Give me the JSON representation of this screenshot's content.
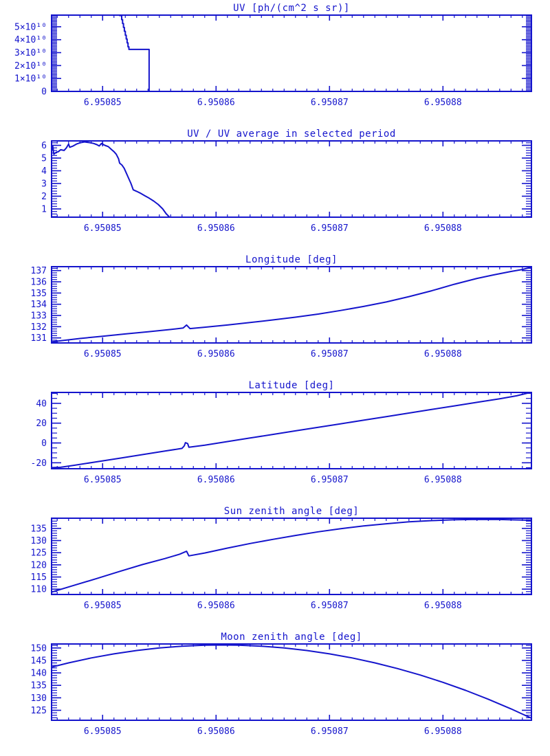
{
  "style": {
    "line_color": "#1414cc",
    "background": "#ffffff"
  },
  "chart_data": [
    {
      "type": "line",
      "title": "UV [ph/(cm^2 s sr)]",
      "x_range": [
        6.9508455,
        6.9508878
      ],
      "x_major_ticks": [
        6.95085,
        6.95086,
        6.95087,
        6.95088
      ],
      "x_tick_labels": [
        "6.95085",
        "6.95086",
        "6.95087",
        "6.95088"
      ],
      "x_minor_step": 1e-06,
      "y_range": [
        0,
        59000000000.0
      ],
      "y_major_ticks": [
        0,
        10000000000.0,
        20000000000.0,
        30000000000.0,
        40000000000.0,
        50000000000.0
      ],
      "y_tick_labels": [
        "0",
        "1×10¹⁰",
        "2×10¹⁰",
        "3×10¹⁰",
        "4×10¹⁰",
        "5×10¹⁰"
      ],
      "y_minor_step": 1000000000.0,
      "points": [
        [
          6.9508455,
          80000000000.0
        ],
        [
          6.9508512,
          80000000000.0
        ],
        [
          6.9508515,
          58700000000.0
        ],
        [
          6.95085168,
          58700000000.0
        ],
        [
          6.95085168,
          55500000000.0
        ],
        [
          6.95085176,
          55500000000.0
        ],
        [
          6.95085176,
          52500000000.0
        ],
        [
          6.95085184,
          52500000000.0
        ],
        [
          6.95085184,
          49500000000.0
        ],
        [
          6.95085192,
          49500000000.0
        ],
        [
          6.95085192,
          46500000000.0
        ],
        [
          6.950852,
          46500000000.0
        ],
        [
          6.950852,
          43500000000.0
        ],
        [
          6.95085208,
          43500000000.0
        ],
        [
          6.95085208,
          40500000000.0
        ],
        [
          6.95085216,
          40500000000.0
        ],
        [
          6.95085216,
          37500000000.0
        ],
        [
          6.95085224,
          37500000000.0
        ],
        [
          6.95085224,
          34500000000.0
        ],
        [
          6.95085232,
          34500000000.0
        ],
        [
          6.95085232,
          32500000000.0
        ],
        [
          6.9508541,
          32500000000.0
        ],
        [
          6.9508541,
          0
        ],
        [
          6.9508878,
          0
        ]
      ]
    },
    {
      "type": "line",
      "title": "UV / UV average in selected period",
      "x_range": [
        6.9508455,
        6.9508878
      ],
      "x_major_ticks": [
        6.95085,
        6.95086,
        6.95087,
        6.95088
      ],
      "x_tick_labels": [
        "6.95085",
        "6.95086",
        "6.95087",
        "6.95088"
      ],
      "x_minor_step": 1e-06,
      "y_range": [
        0.35,
        6.35
      ],
      "y_major_ticks": [
        1,
        2,
        3,
        4,
        5,
        6
      ],
      "y_tick_labels": [
        "1",
        "2",
        "3",
        "4",
        "5",
        "6"
      ],
      "y_minor_step": 0.2,
      "points": [
        [
          6.9508455,
          5.6
        ],
        [
          6.9508456,
          5.95
        ],
        [
          6.9508457,
          5.3
        ],
        [
          6.9508459,
          5.45
        ],
        [
          6.9508461,
          5.5
        ],
        [
          6.9508463,
          5.65
        ],
        [
          6.9508466,
          5.6
        ],
        [
          6.9508468,
          5.8
        ],
        [
          6.950847,
          6.1
        ],
        [
          6.9508471,
          5.85
        ],
        [
          6.9508474,
          5.95
        ],
        [
          6.9508477,
          6.1
        ],
        [
          6.950848,
          6.2
        ],
        [
          6.9508484,
          6.27
        ],
        [
          6.9508488,
          6.22
        ],
        [
          6.9508492,
          6.15
        ],
        [
          6.9508495,
          6.05
        ],
        [
          6.9508497,
          5.95
        ],
        [
          6.9508499,
          6.15
        ],
        [
          6.9508502,
          6.0
        ],
        [
          6.9508505,
          5.9
        ],
        [
          6.9508508,
          5.65
        ],
        [
          6.950851,
          5.5
        ],
        [
          6.9508512,
          5.3
        ],
        [
          6.9508514,
          4.95
        ],
        [
          6.9508515,
          4.6
        ],
        [
          6.9508517,
          4.45
        ],
        [
          6.9508519,
          4.2
        ],
        [
          6.9508521,
          3.8
        ],
        [
          6.9508523,
          3.4
        ],
        [
          6.9508525,
          3.0
        ],
        [
          6.9508527,
          2.5
        ],
        [
          6.950853,
          2.38
        ],
        [
          6.9508533,
          2.25
        ],
        [
          6.9508537,
          2.05
        ],
        [
          6.9508541,
          1.85
        ],
        [
          6.9508545,
          1.62
        ],
        [
          6.9508549,
          1.35
        ],
        [
          6.9508553,
          1.0
        ],
        [
          6.9508556,
          0.62
        ],
        [
          6.9508559,
          0.35
        ],
        [
          6.9508878,
          0.35
        ]
      ]
    },
    {
      "type": "line",
      "title": "Longitude [deg]",
      "x_range": [
        6.9508455,
        6.9508878
      ],
      "x_major_ticks": [
        6.95085,
        6.95086,
        6.95087,
        6.95088
      ],
      "x_tick_labels": [
        "6.95085",
        "6.95086",
        "6.95087",
        "6.95088"
      ],
      "x_minor_step": 1e-06,
      "y_range": [
        130.55,
        137.35
      ],
      "y_major_ticks": [
        131,
        132,
        133,
        134,
        135,
        136,
        137
      ],
      "y_tick_labels": [
        "131",
        "132",
        "133",
        "134",
        "135",
        "136",
        "137"
      ],
      "y_minor_step": 0.2,
      "points": [
        [
          6.9508455,
          130.65
        ],
        [
          6.950848,
          130.95
        ],
        [
          6.95085,
          131.15
        ],
        [
          6.950852,
          131.35
        ],
        [
          6.950854,
          131.55
        ],
        [
          6.950856,
          131.75
        ],
        [
          6.9508571,
          131.88
        ],
        [
          6.9508574,
          132.15
        ],
        [
          6.9508577,
          131.83
        ],
        [
          6.950859,
          131.95
        ],
        [
          6.950861,
          132.15
        ],
        [
          6.950863,
          132.37
        ],
        [
          6.950865,
          132.6
        ],
        [
          6.950867,
          132.85
        ],
        [
          6.950869,
          133.12
        ],
        [
          6.950871,
          133.45
        ],
        [
          6.950873,
          133.8
        ],
        [
          6.950875,
          134.2
        ],
        [
          6.950877,
          134.68
        ],
        [
          6.950879,
          135.2
        ],
        [
          6.950881,
          135.78
        ],
        [
          6.950883,
          136.3
        ],
        [
          6.9508845,
          136.62
        ],
        [
          6.950886,
          136.92
        ],
        [
          6.950887,
          137.1
        ],
        [
          6.9508878,
          137.3
        ]
      ]
    },
    {
      "type": "line",
      "title": "Latitude [deg]",
      "x_range": [
        6.9508455,
        6.9508878
      ],
      "x_major_ticks": [
        6.95085,
        6.95086,
        6.95087,
        6.95088
      ],
      "x_tick_labels": [
        "6.95085",
        "6.95086",
        "6.95087",
        "6.95088"
      ],
      "x_minor_step": 1e-06,
      "y_range": [
        -26,
        51
      ],
      "y_major_ticks": [
        -20,
        0,
        20,
        40
      ],
      "y_tick_labels": [
        "-20",
        "0",
        "20",
        "40"
      ],
      "y_minor_step": 5,
      "points": [
        [
          6.9508455,
          -24.9
        ],
        [
          6.9508463,
          -24.55
        ],
        [
          6.9508475,
          -22.5
        ],
        [
          6.9508495,
          -19.0
        ],
        [
          6.9508515,
          -15.4
        ],
        [
          6.9508535,
          -11.8
        ],
        [
          6.9508555,
          -8.2
        ],
        [
          6.950857,
          -5.5
        ],
        [
          6.9508572,
          -2.8
        ],
        [
          6.9508573,
          0.3
        ],
        [
          6.9508575,
          -0.6
        ],
        [
          6.9508576,
          -4.3
        ],
        [
          6.950859,
          -2.2
        ],
        [
          6.950861,
          1.4
        ],
        [
          6.950863,
          5.0
        ],
        [
          6.950865,
          8.6
        ],
        [
          6.950867,
          12.2
        ],
        [
          6.950869,
          15.8
        ],
        [
          6.950871,
          19.4
        ],
        [
          6.950873,
          23.0
        ],
        [
          6.950875,
          26.6
        ],
        [
          6.950877,
          30.2
        ],
        [
          6.950879,
          33.8
        ],
        [
          6.950881,
          37.4
        ],
        [
          6.950883,
          41.0
        ],
        [
          6.950885,
          44.6
        ],
        [
          6.9508865,
          47.6
        ],
        [
          6.9508878,
          51.3
        ]
      ]
    },
    {
      "type": "line",
      "title": "Sun zenith angle [deg]",
      "x_range": [
        6.9508455,
        6.9508878
      ],
      "x_major_ticks": [
        6.95085,
        6.95086,
        6.95087,
        6.95088
      ],
      "x_tick_labels": [
        "6.95085",
        "6.95086",
        "6.95087",
        "6.95088"
      ],
      "x_minor_step": 1e-06,
      "y_range": [
        107.8,
        139.2
      ],
      "y_major_ticks": [
        110,
        115,
        120,
        125,
        130,
        135
      ],
      "y_tick_labels": [
        "110",
        "115",
        "120",
        "125",
        "130",
        "135"
      ],
      "y_minor_step": 1,
      "points": [
        [
          6.9508455,
          108.8
        ],
        [
          6.9508475,
          111.6
        ],
        [
          6.9508495,
          114.4
        ],
        [
          6.9508515,
          117.3
        ],
        [
          6.9508535,
          120.1
        ],
        [
          6.9508555,
          122.6
        ],
        [
          6.9508568,
          124.4
        ],
        [
          6.9508571,
          125.0
        ],
        [
          6.9508574,
          125.6
        ],
        [
          6.9508576,
          123.7
        ],
        [
          6.950859,
          124.9
        ],
        [
          6.950861,
          126.9
        ],
        [
          6.950863,
          128.8
        ],
        [
          6.950865,
          130.5
        ],
        [
          6.950867,
          132.1
        ],
        [
          6.950869,
          133.6
        ],
        [
          6.950871,
          134.9
        ],
        [
          6.950873,
          136.0
        ],
        [
          6.950875,
          136.9
        ],
        [
          6.950877,
          137.7
        ],
        [
          6.950879,
          138.2
        ],
        [
          6.950881,
          138.55
        ],
        [
          6.950883,
          138.72
        ],
        [
          6.950885,
          138.65
        ],
        [
          6.9508865,
          138.5
        ],
        [
          6.9508878,
          138.35
        ]
      ]
    },
    {
      "type": "line",
      "title": "Moon zenith angle [deg]",
      "x_range": [
        6.9508455,
        6.9508878
      ],
      "x_major_ticks": [
        6.95085,
        6.95086,
        6.95087,
        6.95088
      ],
      "x_tick_labels": [
        "6.95085",
        "6.95086",
        "6.95087",
        "6.95088"
      ],
      "x_minor_step": 1e-06,
      "y_range": [
        121,
        151.6
      ],
      "y_major_ticks": [
        125,
        130,
        135,
        140,
        145,
        150
      ],
      "y_tick_labels": [
        "125",
        "130",
        "135",
        "140",
        "145",
        "150"
      ],
      "y_minor_step": 1,
      "points": [
        [
          6.9508455,
          142.33
        ],
        [
          6.950847,
          144.02
        ],
        [
          6.950849,
          145.99
        ],
        [
          6.950851,
          147.64
        ],
        [
          6.950853,
          148.98
        ],
        [
          6.950855,
          150.01
        ],
        [
          6.950857,
          150.72
        ],
        [
          6.950859,
          151.11
        ],
        [
          6.9508605,
          151.2
        ],
        [
          6.950862,
          151.11
        ],
        [
          6.950864,
          150.72
        ],
        [
          6.950866,
          150.01
        ],
        [
          6.950868,
          148.98
        ],
        [
          6.95087,
          147.64
        ],
        [
          6.950872,
          145.99
        ],
        [
          6.950874,
          144.02
        ],
        [
          6.950876,
          141.74
        ],
        [
          6.950878,
          139.13
        ],
        [
          6.95088,
          136.22
        ],
        [
          6.950882,
          132.99
        ],
        [
          6.950884,
          129.44
        ],
        [
          6.950886,
          125.58
        ],
        [
          6.9508878,
          121.83
        ]
      ]
    }
  ]
}
